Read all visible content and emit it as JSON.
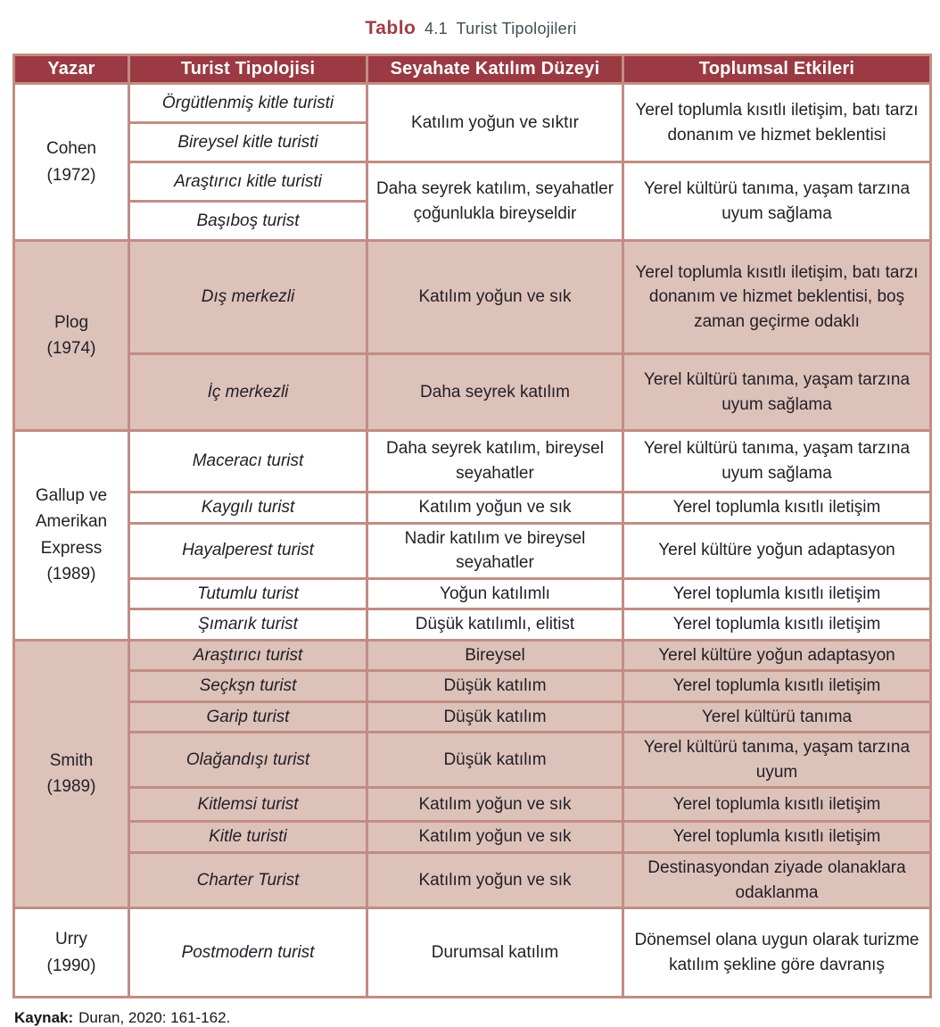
{
  "title": {
    "label": "Tablo",
    "number": "4.1",
    "text": "Turist Tipolojileri"
  },
  "columns": [
    "Yazar",
    "Turist Tipolojisi",
    "Seyahate Katılım Düzeyi",
    "Toplumsal Etkileri"
  ],
  "groups": [
    {
      "author": "Cohen\n(1972)",
      "shaded": false,
      "rows": [
        {
          "typology": "Örgütlenmiş kitle turisti",
          "participation": {
            "text": "Katılım yoğun ve sıktır",
            "rowspan": 2
          },
          "impact": {
            "text": "Yerel toplumla kısıtlı iletişim, batı tarzı donanım ve hizmet beklentisi",
            "rowspan": 2
          }
        },
        {
          "typology": "Bireysel kitle turisti"
        },
        {
          "typology": "Araştırıcı kitle turisti",
          "participation": {
            "text": "Daha seyrek katılım, seyahatler çoğunlukla bireyseldir",
            "rowspan": 2
          },
          "impact": {
            "text": "Yerel kültürü tanıma, yaşam tarzına uyum sağlama",
            "rowspan": 2
          }
        },
        {
          "typology": "Başıboş turist"
        }
      ]
    },
    {
      "author": "Plog\n(1974)",
      "shaded": true,
      "rows": [
        {
          "typology": "Dış merkezli",
          "participation": {
            "text": "Katılım yoğun ve sık",
            "rowspan": 1
          },
          "impact": {
            "text": "Yerel toplumla kısıtlı iletişim, batı tarzı donanım ve hizmet beklentisi, boş zaman geçirme odaklı",
            "rowspan": 1
          }
        },
        {
          "typology": "İç merkezli",
          "participation": {
            "text": "Daha seyrek katılım",
            "rowspan": 1
          },
          "impact": {
            "text": "Yerel kültürü tanıma, yaşam tarzına uyum sağlama",
            "rowspan": 1
          }
        }
      ]
    },
    {
      "author": "Gallup ve\nAmerikan\nExpress\n(1989)",
      "shaded": false,
      "rows": [
        {
          "typology": "Maceracı turist",
          "participation": {
            "text": "Daha seyrek katılım, bireysel seyahatler",
            "rowspan": 1
          },
          "impact": {
            "text": "Yerel kültürü tanıma, yaşam tarzına uyum sağlama",
            "rowspan": 1
          }
        },
        {
          "typology": "Kaygılı turist",
          "participation": {
            "text": "Katılım yoğun ve sık",
            "rowspan": 1
          },
          "impact": {
            "text": "Yerel toplumla kısıtlı iletişim",
            "rowspan": 1
          }
        },
        {
          "typology": "Hayalperest turist",
          "participation": {
            "text": "Nadir katılım ve bireysel seyahatler",
            "rowspan": 1
          },
          "impact": {
            "text": "Yerel kültüre yoğun adaptasyon",
            "rowspan": 1
          }
        },
        {
          "typology": "Tutumlu turist",
          "participation": {
            "text": "Yoğun katılımlı",
            "rowspan": 1
          },
          "impact": {
            "text": "Yerel toplumla kısıtlı iletişim",
            "rowspan": 1
          }
        },
        {
          "typology": "Şımarık turist",
          "participation": {
            "text": "Düşük katılımlı, elitist",
            "rowspan": 1
          },
          "impact": {
            "text": "Yerel toplumla kısıtlı iletişim",
            "rowspan": 1
          }
        }
      ]
    },
    {
      "author": "Smith\n(1989)",
      "shaded": true,
      "rows": [
        {
          "typology": "Araştırıcı turist",
          "participation": {
            "text": "Bireysel",
            "rowspan": 1
          },
          "impact": {
            "text": "Yerel kültüre yoğun adaptasyon",
            "rowspan": 1
          }
        },
        {
          "typology": "Seçkşn turist",
          "participation": {
            "text": "Düşük katılım",
            "rowspan": 1
          },
          "impact": {
            "text": "Yerel toplumla kısıtlı iletişim",
            "rowspan": 1
          }
        },
        {
          "typology": "Garip turist",
          "participation": {
            "text": "Düşük katılım",
            "rowspan": 1
          },
          "impact": {
            "text": "Yerel kültürü tanıma",
            "rowspan": 1
          }
        },
        {
          "typology": "Olağandışı turist",
          "participation": {
            "text": "Düşük katılım",
            "rowspan": 1
          },
          "impact": {
            "text": "Yerel kültürü tanıma, yaşam tarzına uyum",
            "rowspan": 1
          }
        },
        {
          "typology": "Kitlemsi turist",
          "participation": {
            "text": "Katılım yoğun ve sık",
            "rowspan": 1
          },
          "impact": {
            "text": "Yerel toplumla kısıtlı iletişim",
            "rowspan": 1
          }
        },
        {
          "typology": "Kitle turisti",
          "participation": {
            "text": "Katılım yoğun ve sık",
            "rowspan": 1
          },
          "impact": {
            "text": "Yerel toplumla kısıtlı iletişim",
            "rowspan": 1
          }
        },
        {
          "typology": "Charter Turist",
          "participation": {
            "text": "Katılım yoğun ve sık",
            "rowspan": 1
          },
          "impact": {
            "text": "Destinasyondan ziyade olanaklara odaklanma",
            "rowspan": 1
          }
        }
      ]
    },
    {
      "author": "Urry\n(1990)",
      "shaded": false,
      "rows": [
        {
          "typology": "Postmodern turist",
          "participation": {
            "text": "Durumsal katılım",
            "rowspan": 1
          },
          "impact": {
            "text": "Dönemsel olana uygun olarak turizme katılım şekline göre davranış",
            "rowspan": 1
          }
        }
      ]
    }
  ],
  "source": {
    "label": "Kaynak:",
    "text": "Duran, 2020: 161-162."
  },
  "colors": {
    "header_bg": "#9b3a42",
    "border": "#c18d83",
    "row_shade": "#ddc2ba",
    "title_accent": "#a33d44",
    "title_slate": "#3f4e54"
  }
}
